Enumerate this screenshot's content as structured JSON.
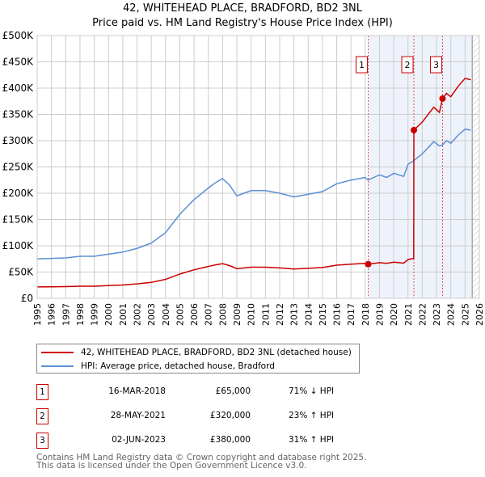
{
  "chart_data": {
    "type": "line",
    "title": "42, WHITEHEAD PLACE, BRADFORD, BD2 3NL",
    "subtitle": "Price paid vs. HM Land Registry's House Price Index (HPI)",
    "xlim": [
      1995,
      2026
    ],
    "ylim": [
      0,
      500000
    ],
    "x_ticks": [
      "1995",
      "1996",
      "1997",
      "1998",
      "1999",
      "2000",
      "2001",
      "2002",
      "2003",
      "2004",
      "2005",
      "2006",
      "2007",
      "2008",
      "2009",
      "2010",
      "2011",
      "2012",
      "2013",
      "2014",
      "2015",
      "2016",
      "2017",
      "2018",
      "2019",
      "2020",
      "2021",
      "2022",
      "2023",
      "2024",
      "2025",
      "2026"
    ],
    "y_ticks": [
      {
        "v": 0,
        "l": "£0"
      },
      {
        "v": 50000,
        "l": "£50K"
      },
      {
        "v": 100000,
        "l": "£100K"
      },
      {
        "v": 150000,
        "l": "£150K"
      },
      {
        "v": 200000,
        "l": "£200K"
      },
      {
        "v": 250000,
        "l": "£250K"
      },
      {
        "v": 300000,
        "l": "£300K"
      },
      {
        "v": 350000,
        "l": "£350K"
      },
      {
        "v": 400000,
        "l": "£400K"
      },
      {
        "v": 450000,
        "l": "£450K"
      },
      {
        "v": 500000,
        "l": "£500K"
      }
    ],
    "grid": true,
    "shaded_range": [
      2018.2,
      2025.5
    ],
    "hatched_from": 2025.5,
    "series": [
      {
        "name": "42, WHITEHEAD PLACE, BRADFORD, BD2 3NL (detached house)",
        "color": "#cc0000",
        "x": [
          1995,
          1996,
          1997,
          1998,
          1999,
          2000,
          2001,
          2002,
          2003,
          2004,
          2005,
          2006,
          2007,
          2007.5,
          2008,
          2008.5,
          2009,
          2009.5,
          2010,
          2011,
          2012,
          2013,
          2014,
          2015,
          2016,
          2017,
          2018,
          2018.2,
          2019,
          2019.5,
          2020,
          2020.7,
          2021,
          2021.4,
          2021.41,
          2022,
          2022.8,
          2023.2,
          2023.42,
          2023.7,
          2024,
          2024.5,
          2025,
          2025.4
        ],
        "y": [
          21700,
          22000,
          22300,
          23100,
          23100,
          24300,
          25400,
          27500,
          30300,
          36100,
          46200,
          54300,
          60700,
          63600,
          65900,
          62100,
          56400,
          57800,
          59200,
          59200,
          57800,
          55800,
          57200,
          58700,
          63000,
          65000,
          66500,
          65000,
          67900,
          66500,
          68800,
          67000,
          73700,
          76000,
          320000,
          335500,
          363600,
          353800,
          380000,
          390000,
          383500,
          403000,
          418600,
          416000
        ]
      },
      {
        "name": "HPI: Average price, detached house, Bradford",
        "color": "#5b8fd4",
        "x": [
          1995,
          1996,
          1997,
          1998,
          1999,
          2000,
          2001,
          2002,
          2003,
          2004,
          2005,
          2006,
          2007,
          2007.5,
          2008,
          2008.5,
          2009,
          2009.5,
          2010,
          2011,
          2012,
          2013,
          2014,
          2015,
          2016,
          2017,
          2018,
          2018.2,
          2019,
          2019.5,
          2020,
          2020.7,
          2021,
          2021.4,
          2022,
          2022.8,
          2023.2,
          2023.42,
          2023.7,
          2024,
          2024.5,
          2025,
          2025.4
        ],
        "y": [
          75000,
          76000,
          77000,
          80000,
          80000,
          84000,
          88000,
          95000,
          105000,
          125000,
          160000,
          188000,
          210000,
          220000,
          228000,
          215000,
          195000,
          200000,
          205000,
          205000,
          200000,
          193000,
          198000,
          203000,
          218000,
          225000,
          230000,
          225000,
          235000,
          230000,
          238000,
          232000,
          255000,
          262000,
          275000,
          298000,
          290000,
          292000,
          300000,
          295000,
          310000,
          322000,
          320000
        ]
      }
    ],
    "sales": [
      {
        "n": "1",
        "x": 2018.21,
        "y": 65000,
        "date": "16-MAR-2018",
        "price": "£65,000",
        "hpi": "71% ↓ HPI"
      },
      {
        "n": "2",
        "x": 2021.41,
        "y": 320000,
        "date": "28-MAY-2021",
        "price": "£320,000",
        "hpi": "23% ↑ HPI"
      },
      {
        "n": "3",
        "x": 2023.42,
        "y": 380000,
        "date": "02-JUN-2023",
        "price": "£380,000",
        "hpi": "31% ↑ HPI"
      }
    ]
  },
  "footer": {
    "line1": "Contains HM Land Registry data © Crown copyright and database right 2025.",
    "line2": "This data is licensed under the Open Government Licence v3.0."
  }
}
